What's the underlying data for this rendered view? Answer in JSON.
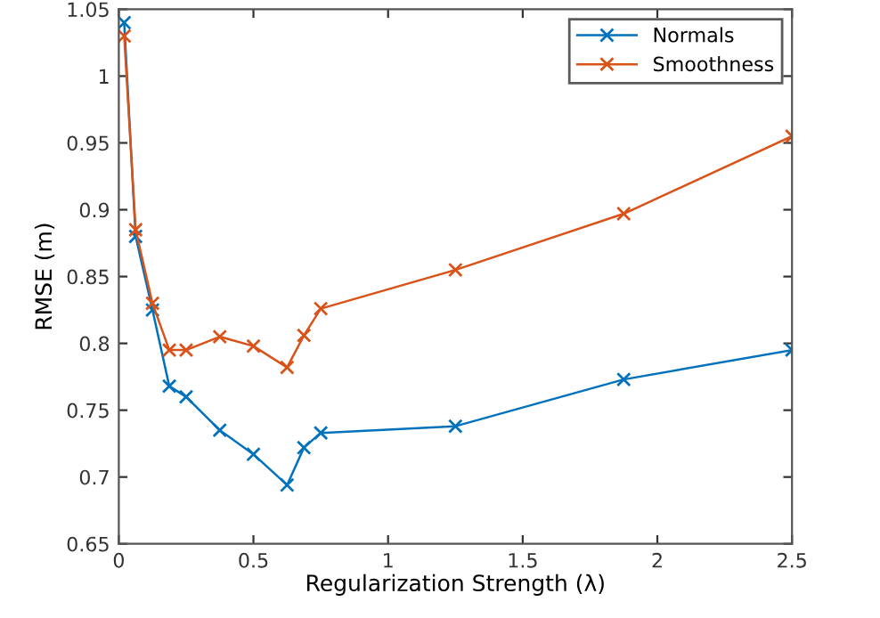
{
  "chart_data": {
    "type": "line",
    "xlabel": "Regularization Strength (λ)",
    "ylabel": "RMSE (m)",
    "xlim": [
      0,
      2.5
    ],
    "ylim": [
      0.65,
      1.05
    ],
    "xticks": [
      0,
      0.5,
      1,
      1.5,
      2,
      2.5
    ],
    "yticks": [
      0.65,
      0.7,
      0.75,
      0.8,
      0.85,
      0.9,
      0.95,
      1,
      1.05
    ],
    "x": [
      0.02,
      0.0625,
      0.125,
      0.1875,
      0.25,
      0.375,
      0.5,
      0.625,
      0.6875,
      0.75,
      1.25,
      1.875,
      2.5
    ],
    "series": [
      {
        "name": "Normals",
        "color": "#0072bd",
        "values": [
          1.04,
          0.88,
          0.825,
          0.768,
          0.76,
          0.735,
          0.717,
          0.694,
          0.722,
          0.733,
          0.738,
          0.773,
          0.795
        ]
      },
      {
        "name": "Smoothness",
        "color": "#d95319",
        "values": [
          1.03,
          0.885,
          0.83,
          0.795,
          0.795,
          0.805,
          0.798,
          0.782,
          0.806,
          0.826,
          0.855,
          0.897,
          0.955
        ]
      }
    ],
    "marker": "cross",
    "line_style": "solid",
    "grid": false,
    "legend": "top right"
  }
}
